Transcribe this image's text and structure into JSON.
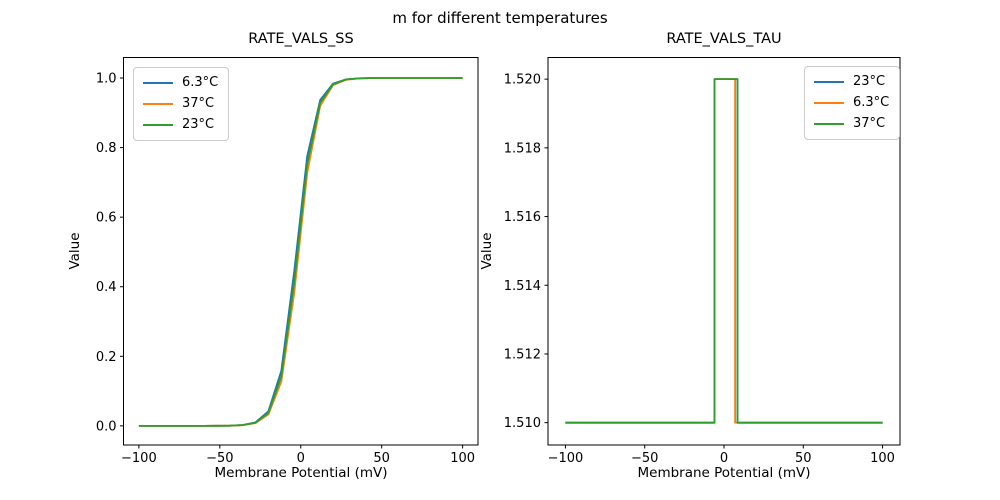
{
  "figure_title": "m for different temperatures",
  "chart_data": [
    {
      "type": "line",
      "title": "RATE_VALS_SS",
      "xlabel": "Membrane Potential (mV)",
      "ylabel": "Value",
      "xlim": [
        -109.5,
        109.5
      ],
      "ylim": [
        -0.055,
        1.059
      ],
      "xtick_values": [
        -100,
        -50,
        0,
        50,
        100
      ],
      "xtick_labels": [
        "−100",
        "−50",
        "0",
        "50",
        "100"
      ],
      "ytick_values": [
        0.0,
        0.2,
        0.4,
        0.6,
        0.8,
        1.0
      ],
      "ytick_labels": [
        "0.0",
        "0.2",
        "0.4",
        "0.6",
        "0.8",
        "1.0"
      ],
      "grid": false,
      "legend_position": "upper left",
      "legend": [
        {
          "label": "6.3°C",
          "color": "#1f77b4"
        },
        {
          "label": "37°C",
          "color": "#ff7f0e"
        },
        {
          "label": "23°C",
          "color": "#2ca02c"
        }
      ],
      "x": [
        -100,
        -92,
        -84,
        -76,
        -68,
        -60,
        -52,
        -44,
        -36,
        -28,
        -20,
        -12,
        -4,
        4,
        12,
        20,
        28,
        36,
        44,
        52,
        60,
        68,
        76,
        84,
        92,
        100
      ],
      "series": [
        {
          "name": "6.3°C",
          "color": "#1f77b4",
          "y": [
            0,
            0,
            0,
            0,
            0,
            0,
            0.0001,
            0.0006,
            0.0024,
            0.0101,
            0.042,
            0.158,
            0.446,
            0.775,
            0.937,
            0.984,
            0.996,
            0.999,
            1,
            1,
            1,
            1,
            1,
            1,
            1,
            1
          ]
        },
        {
          "name": "37°C",
          "color": "#ff7f0e",
          "y": [
            0,
            0,
            0,
            0,
            0,
            0,
            0.0001,
            0.0004,
            0.0019,
            0.0079,
            0.0329,
            0.127,
            0.384,
            0.727,
            0.92,
            0.98,
            0.995,
            0.999,
            1,
            1,
            1,
            1,
            1,
            1,
            1,
            1
          ]
        },
        {
          "name": "23°C",
          "color": "#2ca02c",
          "y": [
            0,
            0,
            0,
            0,
            0,
            0,
            0.0001,
            0.0005,
            0.0021,
            0.0089,
            0.0372,
            0.142,
            0.414,
            0.752,
            0.929,
            0.982,
            0.996,
            0.999,
            1,
            1,
            1,
            1,
            1,
            1,
            1,
            1
          ]
        }
      ]
    },
    {
      "type": "line",
      "title": "RATE_VALS_TAU",
      "xlabel": "Membrane Potential (mV)",
      "ylabel": "Value",
      "xlim": [
        -111,
        111
      ],
      "ylim": [
        1.50935,
        1.52063
      ],
      "xtick_values": [
        -100,
        -50,
        0,
        50,
        100
      ],
      "xtick_labels": [
        "−100",
        "−50",
        "0",
        "50",
        "100"
      ],
      "ytick_values": [
        1.51,
        1.512,
        1.514,
        1.516,
        1.518,
        1.52
      ],
      "ytick_labels": [
        "1.510",
        "1.512",
        "1.514",
        "1.516",
        "1.518",
        "1.520"
      ],
      "grid": false,
      "legend_position": "upper right",
      "legend": [
        {
          "label": "23°C",
          "color": "#1f77b4"
        },
        {
          "label": "6.3°C",
          "color": "#ff7f0e"
        },
        {
          "label": "37°C",
          "color": "#2ca02c"
        }
      ],
      "series": [
        {
          "name": "23°C",
          "color": "#1f77b4",
          "x": [
            -100,
            -6,
            -6,
            8.5,
            8.5,
            100
          ],
          "y": [
            1.51,
            1.51,
            1.52,
            1.52,
            1.51,
            1.51
          ]
        },
        {
          "name": "6.3°C",
          "color": "#ff7f0e",
          "x": [
            -100,
            -6,
            -6,
            7,
            7,
            100
          ],
          "y": [
            1.51,
            1.51,
            1.52,
            1.52,
            1.51,
            1.51
          ]
        },
        {
          "name": "37°C",
          "color": "#2ca02c",
          "x": [
            -100,
            -6,
            -6,
            8.5,
            8.5,
            100
          ],
          "y": [
            1.51,
            1.51,
            1.52,
            1.52,
            1.51,
            1.51
          ]
        }
      ]
    }
  ]
}
